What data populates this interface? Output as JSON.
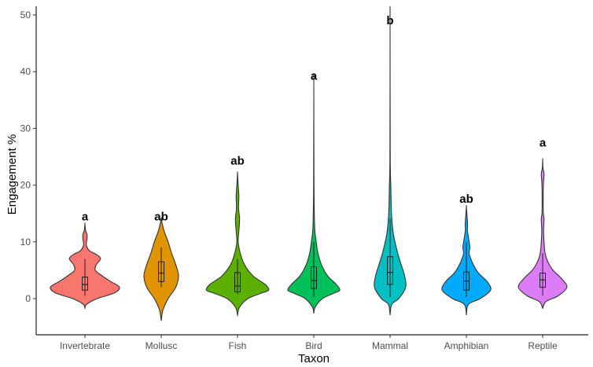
{
  "chart_data": {
    "type": "violin",
    "title": "",
    "xlabel": "Taxon",
    "ylabel": "Engagement %",
    "ylim": [
      -6.5,
      51.5
    ],
    "yticks": [
      0,
      10,
      20,
      30,
      40,
      50
    ],
    "grid": false,
    "legend": "none",
    "categories": [
      "Invertebrate",
      "Mollusc",
      "Fish",
      "Bird",
      "Mammal",
      "Amphibian",
      "Reptile"
    ],
    "colors": [
      "#F8766D",
      "#E09400",
      "#5BB000",
      "#00C05A",
      "#00C0C4",
      "#00AAFF",
      "#DC7CF6"
    ],
    "significance_letters": [
      "a",
      "ab",
      "ab",
      "a",
      "b",
      "ab",
      "a"
    ],
    "letter_y": [
      14.5,
      14.5,
      24.3,
      39.3,
      49.0,
      17.6,
      27.5
    ],
    "series": [
      {
        "category": "Invertebrate",
        "density": [
          [
            -1.7,
            0
          ],
          [
            -1,
            0.05
          ],
          [
            0,
            0.35
          ],
          [
            1,
            0.85
          ],
          [
            2,
            1.0
          ],
          [
            3,
            0.75
          ],
          [
            4,
            0.5
          ],
          [
            5,
            0.3
          ],
          [
            6,
            0.33
          ],
          [
            7,
            0.45
          ],
          [
            7.7,
            0.35
          ],
          [
            8.5,
            0.12
          ],
          [
            9.5,
            0.04
          ],
          [
            10.5,
            0.06
          ],
          [
            11.3,
            0.06
          ],
          [
            12,
            0.02
          ],
          [
            13.2,
            0
          ]
        ],
        "box": {
          "whisker_low": 0.5,
          "q1": 1.5,
          "median": 2.5,
          "q3": 3.8,
          "whisker_high": 7
        }
      },
      {
        "category": "Mollusc",
        "density": [
          [
            -3.9,
            0
          ],
          [
            -2,
            0.05
          ],
          [
            0,
            0.2
          ],
          [
            2,
            0.42
          ],
          [
            4,
            0.5
          ],
          [
            6,
            0.42
          ],
          [
            8,
            0.3
          ],
          [
            10,
            0.2
          ],
          [
            12,
            0.08
          ],
          [
            14,
            0
          ]
        ],
        "box": {
          "whisker_low": 2,
          "q1": 3,
          "median": 4.5,
          "q3": 6.5,
          "whisker_high": 9
        }
      },
      {
        "category": "Fish",
        "density": [
          [
            -2.9,
            0
          ],
          [
            -1.5,
            0.06
          ],
          [
            0,
            0.3
          ],
          [
            1,
            0.7
          ],
          [
            1.5,
            0.9
          ],
          [
            2.5,
            0.8
          ],
          [
            4,
            0.45
          ],
          [
            6,
            0.2
          ],
          [
            8,
            0.08
          ],
          [
            10,
            0.02
          ],
          [
            12,
            0.04
          ],
          [
            14,
            0.06
          ],
          [
            16,
            0.03
          ],
          [
            18,
            0.04
          ],
          [
            19,
            0.03
          ],
          [
            21,
            0.01
          ],
          [
            22.2,
            0
          ]
        ],
        "box": {
          "whisker_low": 0.8,
          "q1": 1.2,
          "median": 2.2,
          "q3": 4.6,
          "whisker_high": 7
        }
      },
      {
        "category": "Bird",
        "density": [
          [
            -2.6,
            0
          ],
          [
            -1.5,
            0.04
          ],
          [
            0,
            0.25
          ],
          [
            1,
            0.6
          ],
          [
            1.5,
            0.75
          ],
          [
            2.5,
            0.65
          ],
          [
            4,
            0.4
          ],
          [
            6,
            0.22
          ],
          [
            8,
            0.12
          ],
          [
            10,
            0.07
          ],
          [
            12,
            0.03
          ],
          [
            15,
            0.015
          ],
          [
            20,
            0.006
          ],
          [
            37.5,
            0
          ]
        ],
        "box": {
          "whisker_low": 0.3,
          "q1": 1.8,
          "median": 3.2,
          "q3": 5.6,
          "whisker_high": 10
        }
      },
      {
        "category": "Mammal",
        "density": [
          [
            -2.9,
            0
          ],
          [
            -1,
            0.05
          ],
          [
            0,
            0.25
          ],
          [
            2,
            0.45
          ],
          [
            4,
            0.42
          ],
          [
            6,
            0.32
          ],
          [
            8,
            0.22
          ],
          [
            10,
            0.14
          ],
          [
            12,
            0.08
          ],
          [
            15,
            0.04
          ],
          [
            20,
            0.02
          ],
          [
            25,
            0.005
          ],
          [
            48.5,
            0
          ]
        ],
        "box": {
          "whisker_low": 0.3,
          "q1": 2.5,
          "median": 4.6,
          "q3": 7.4,
          "whisker_high": 14
        }
      },
      {
        "category": "Amphibian",
        "density": [
          [
            -2.9,
            0
          ],
          [
            -1,
            0.06
          ],
          [
            0,
            0.4
          ],
          [
            1.5,
            0.7
          ],
          [
            3,
            0.6
          ],
          [
            4.5,
            0.35
          ],
          [
            6,
            0.2
          ],
          [
            7,
            0.13
          ],
          [
            8,
            0.08
          ],
          [
            9,
            0.1
          ],
          [
            10,
            0.08
          ],
          [
            12,
            0.03
          ],
          [
            13,
            0.035
          ],
          [
            14.5,
            0.02
          ],
          [
            16.2,
            0
          ]
        ],
        "box": {
          "whisker_low": 0.3,
          "q1": 1.5,
          "median": 3.1,
          "q3": 4.7,
          "whisker_high": 10
        }
      },
      {
        "category": "Reptile",
        "density": [
          [
            -1.7,
            0
          ],
          [
            -0.5,
            0.1
          ],
          [
            0.5,
            0.45
          ],
          [
            2,
            0.7
          ],
          [
            3.5,
            0.55
          ],
          [
            5,
            0.3
          ],
          [
            6.5,
            0.15
          ],
          [
            8,
            0.07
          ],
          [
            10,
            0.04
          ],
          [
            12,
            0.025
          ],
          [
            14,
            0.04
          ],
          [
            15,
            0.02
          ],
          [
            17,
            0.015
          ],
          [
            20,
            0.02
          ],
          [
            22,
            0.04
          ],
          [
            23,
            0.01
          ],
          [
            24.5,
            0
          ]
        ],
        "box": {
          "whisker_low": 0.5,
          "q1": 2,
          "median": 3.3,
          "q3": 4.5,
          "whisker_high": 8
        }
      }
    ]
  }
}
